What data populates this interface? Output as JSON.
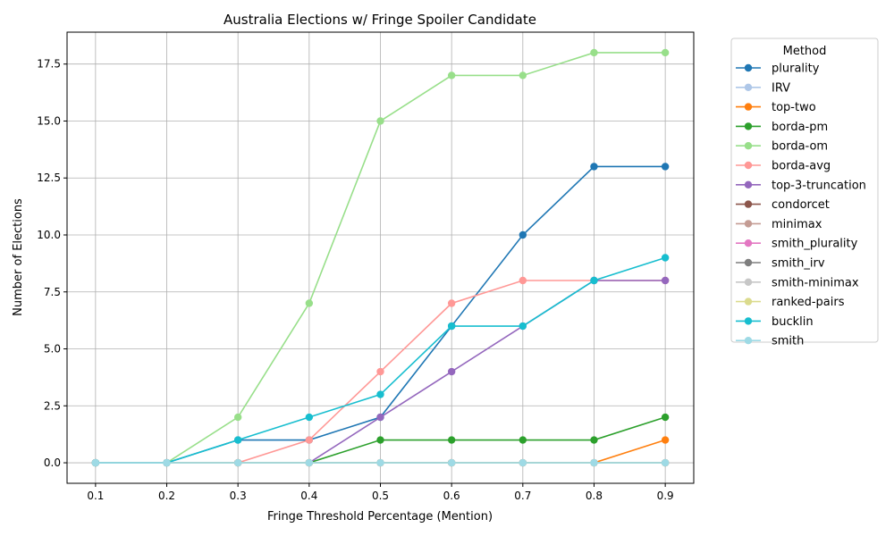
{
  "chart_data": {
    "type": "line",
    "title": "Australia Elections w/ Fringe Spoiler Candidate",
    "xlabel": "Fringe Threshold Percentage (Mention)",
    "ylabel": "Number of Elections",
    "x": [
      0.1,
      0.2,
      0.3,
      0.4,
      0.5,
      0.6,
      0.7,
      0.8,
      0.9
    ],
    "x_ticks": [
      "0.1",
      "0.2",
      "0.3",
      "0.4",
      "0.5",
      "0.6",
      "0.7",
      "0.8",
      "0.9"
    ],
    "y_ticks": [
      "0.0",
      "2.5",
      "5.0",
      "7.5",
      "10.0",
      "12.5",
      "15.0",
      "17.5"
    ],
    "xlim": [
      0.06,
      0.94
    ],
    "ylim": [
      -0.9,
      18.9
    ],
    "grid": true,
    "legend_title": "Method",
    "legend_position": "outside-right",
    "series": [
      {
        "name": "plurality",
        "color": "#1f77b4",
        "values": [
          0,
          0,
          1,
          1,
          2,
          6,
          10,
          13,
          13
        ]
      },
      {
        "name": "IRV",
        "color": "#aec7e8",
        "values": [
          0,
          0,
          0,
          0,
          0,
          0,
          0,
          0,
          0
        ]
      },
      {
        "name": "top-two",
        "color": "#ff7f0e",
        "values": [
          0,
          0,
          0,
          0,
          0,
          0,
          0,
          0,
          1
        ]
      },
      {
        "name": "borda-pm",
        "color": "#2ca02c",
        "values": [
          0,
          0,
          0,
          0,
          1,
          1,
          1,
          1,
          2
        ]
      },
      {
        "name": "borda-om",
        "color": "#98df8a",
        "values": [
          0,
          0,
          2,
          7,
          15,
          17,
          17,
          18,
          18
        ]
      },
      {
        "name": "borda-avg",
        "color": "#ff9896",
        "values": [
          0,
          0,
          0,
          1,
          4,
          7,
          8,
          8,
          8
        ]
      },
      {
        "name": "top-3-truncation",
        "color": "#9467bd",
        "values": [
          0,
          0,
          0,
          0,
          2,
          4,
          6,
          8,
          8
        ]
      },
      {
        "name": "condorcet",
        "color": "#8c564b",
        "values": [
          0,
          0,
          0,
          0,
          0,
          0,
          0,
          0,
          0
        ]
      },
      {
        "name": "minimax",
        "color": "#c49c94",
        "values": [
          0,
          0,
          0,
          0,
          0,
          0,
          0,
          0,
          0
        ]
      },
      {
        "name": "smith_plurality",
        "color": "#e377c2",
        "values": [
          0,
          0,
          0,
          0,
          0,
          0,
          0,
          0,
          0
        ]
      },
      {
        "name": "smith_irv",
        "color": "#7f7f7f",
        "values": [
          0,
          0,
          0,
          0,
          0,
          0,
          0,
          0,
          0
        ]
      },
      {
        "name": "smith-minimax",
        "color": "#c7c7c7",
        "values": [
          0,
          0,
          0,
          0,
          0,
          0,
          0,
          0,
          0
        ]
      },
      {
        "name": "ranked-pairs",
        "color": "#dbdb8d",
        "values": [
          0,
          0,
          0,
          0,
          0,
          0,
          0,
          0,
          0
        ]
      },
      {
        "name": "bucklin",
        "color": "#17becf",
        "values": [
          0,
          0,
          1,
          2,
          3,
          6,
          6,
          8,
          9
        ]
      },
      {
        "name": "smith",
        "color": "#9edae5",
        "values": [
          0,
          0,
          0,
          0,
          0,
          0,
          0,
          0,
          0
        ]
      }
    ]
  }
}
